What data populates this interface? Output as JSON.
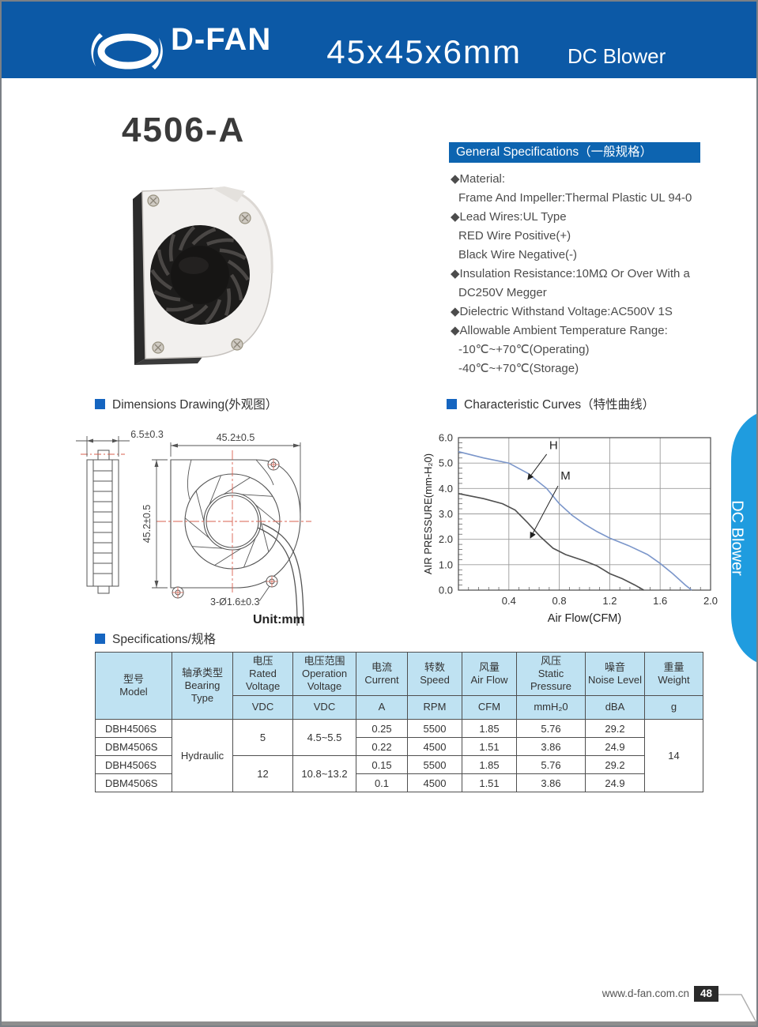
{
  "header": {
    "logo": "D-FAN",
    "size_title": "45x45x6mm",
    "type_title": "DC Blower"
  },
  "model_title": "4506-A",
  "general_specs": {
    "title": "General Specifications（一般规格）",
    "items": [
      {
        "text": "◆Material:",
        "indent": false
      },
      {
        "text": "Frame And Impeller:Thermal Plastic UL 94-0",
        "indent": true
      },
      {
        "text": "◆Lead Wires:UL Type",
        "indent": false
      },
      {
        "text": "RED Wire Positive(+)",
        "indent": true
      },
      {
        "text": "Black Wire Negative(-)",
        "indent": true
      },
      {
        "text": "◆Insulation Resistance:10MΩ Or Over With a",
        "indent": false
      },
      {
        "text": "DC250V Megger",
        "indent": true
      },
      {
        "text": "◆Dielectric Withstand Voltage:AC500V 1S",
        "indent": false
      },
      {
        "text": "◆Allowable Ambient Temperature Range:",
        "indent": false
      },
      {
        "text": "-10℃~+70℃(Operating)",
        "indent": true
      },
      {
        "text": "-40℃~+70℃(Storage)",
        "indent": true
      }
    ]
  },
  "sections": {
    "dimensions": "Dimensions Drawing(外观图）",
    "curves": "Characteristic Curves（特性曲线）",
    "specifications": "Specifications/规格"
  },
  "drawing": {
    "dim_side": "6.5±0.3",
    "dim_width": "45.2±0.5",
    "dim_height": "45.2±0.5",
    "dim_holes": "3-Ø1.6±0.3",
    "unit": "Unit:mm"
  },
  "side_tab": {
    "label": "DC Blower"
  },
  "chart_data": {
    "type": "line",
    "xlabel": "Air Flow(CFM)",
    "ylabel": "AIR PRESSURE(mm-H₂0)",
    "xlim": [
      0,
      2.0
    ],
    "ylim": [
      0,
      6.0
    ],
    "xticks": [
      0.4,
      0.8,
      1.2,
      1.6,
      2.0
    ],
    "yticks": [
      0.0,
      1.0,
      2.0,
      3.0,
      4.0,
      5.0,
      6.0
    ],
    "grid": true,
    "legend_position": "inline-annotations",
    "series": [
      {
        "name": "H",
        "color": "#7b96ca",
        "points": [
          [
            0,
            5.45
          ],
          [
            0.2,
            5.2
          ],
          [
            0.4,
            5.0
          ],
          [
            0.55,
            4.6
          ],
          [
            0.7,
            4.0
          ],
          [
            0.8,
            3.4
          ],
          [
            0.9,
            2.95
          ],
          [
            1.0,
            2.6
          ],
          [
            1.1,
            2.3
          ],
          [
            1.2,
            2.05
          ],
          [
            1.35,
            1.75
          ],
          [
            1.5,
            1.4
          ],
          [
            1.6,
            1.05
          ],
          [
            1.7,
            0.65
          ],
          [
            1.8,
            0.2
          ],
          [
            1.85,
            0
          ]
        ]
      },
      {
        "name": "M",
        "color": "#4f4f4f",
        "points": [
          [
            0,
            3.8
          ],
          [
            0.2,
            3.6
          ],
          [
            0.35,
            3.4
          ],
          [
            0.45,
            3.15
          ],
          [
            0.55,
            2.65
          ],
          [
            0.65,
            2.1
          ],
          [
            0.75,
            1.65
          ],
          [
            0.85,
            1.4
          ],
          [
            1.0,
            1.15
          ],
          [
            1.1,
            0.95
          ],
          [
            1.2,
            0.65
          ],
          [
            1.3,
            0.45
          ],
          [
            1.4,
            0.2
          ],
          [
            1.47,
            0
          ]
        ]
      }
    ],
    "annotations": [
      {
        "label": "H",
        "tx": 0.72,
        "ty": 5.55,
        "lx1": 0.7,
        "ly1": 5.35,
        "lx2": 0.55,
        "ly2": 4.35
      },
      {
        "label": "M",
        "tx": 0.81,
        "ty": 4.35,
        "lx1": 0.79,
        "ly1": 4.1,
        "lx2": 0.57,
        "ly2": 2.05
      }
    ]
  },
  "spec_table": {
    "columns": [
      {
        "zh": "型号",
        "en": "Model",
        "unit": null
      },
      {
        "zh": "轴承类型",
        "en": "Bearing Type",
        "unit": null
      },
      {
        "zh": "电压",
        "en": "Rated Voltage",
        "unit": "VDC"
      },
      {
        "zh": "电压范围",
        "en": "Operation Voltage",
        "unit": "VDC"
      },
      {
        "zh": "电流",
        "en": "Current",
        "unit": "A"
      },
      {
        "zh": "转数",
        "en": "Speed",
        "unit": "RPM"
      },
      {
        "zh": "风量",
        "en": "Air Flow",
        "unit": "CFM"
      },
      {
        "zh": "风压",
        "en": "Static Pressure",
        "unit": "mmH₂0"
      },
      {
        "zh": "噪音",
        "en": "Noise Level",
        "unit": "dBA"
      },
      {
        "zh": "重量",
        "en": "Weight",
        "unit": "g"
      }
    ],
    "merged": {
      "bearing": "Hydraulic",
      "weight": "14",
      "voltage_groups": [
        {
          "rated": "5",
          "operation": "4.5~5.5"
        },
        {
          "rated": "12",
          "operation": "10.8~13.2"
        }
      ]
    },
    "rows": [
      {
        "model": "DBH4506S",
        "current": "0.25",
        "speed": "5500",
        "airflow": "1.85",
        "pressure": "5.76",
        "noise": "29.2"
      },
      {
        "model": "DBM4506S",
        "current": "0.22",
        "speed": "4500",
        "airflow": "1.51",
        "pressure": "3.86",
        "noise": "24.9"
      },
      {
        "model": "DBH4506S",
        "current": "0.15",
        "speed": "5500",
        "airflow": "1.85",
        "pressure": "5.76",
        "noise": "29.2"
      },
      {
        "model": "DBM4506S",
        "current": "0.1",
        "speed": "4500",
        "airflow": "1.51",
        "pressure": "3.86",
        "noise": "24.9"
      }
    ]
  },
  "footer": {
    "website": "www.d-fan.com.cn",
    "page_number": "48"
  }
}
